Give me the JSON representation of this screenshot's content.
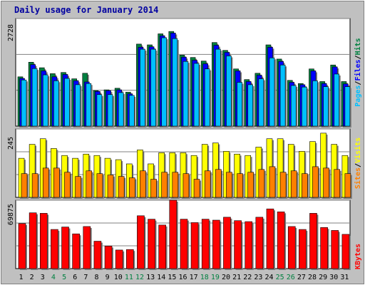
{
  "chart_data": {
    "type": "bar",
    "title": "Daily usage for January 2014",
    "x": [
      "1",
      "2",
      "3",
      "4",
      "5",
      "6",
      "7",
      "8",
      "9",
      "10",
      "11",
      "12",
      "13",
      "14",
      "15",
      "16",
      "17",
      "18",
      "19",
      "20",
      "21",
      "22",
      "23",
      "24",
      "25",
      "26",
      "27",
      "28",
      "29",
      "30",
      "31"
    ],
    "weekend_days": [
      4,
      5,
      11,
      12,
      18,
      19,
      25,
      26
    ],
    "panels": {
      "hits_files_pages": {
        "ymax_label": "2728",
        "ylim": [
          0,
          2728
        ],
        "legend": [
          "Pages",
          "/",
          "Files",
          "/",
          "Hits"
        ],
        "series": [
          {
            "name": "Hits",
            "color": "#008040",
            "values": [
              1250,
              1620,
              1480,
              1330,
              1360,
              1200,
              1340,
              900,
              920,
              960,
              860,
              2080,
              2060,
              2340,
              2400,
              1800,
              1740,
              1650,
              2120,
              1920,
              1450,
              1180,
              1340,
              2060,
              1700,
              1160,
              1080,
              1450,
              1130,
              1550,
              1130
            ]
          },
          {
            "name": "Files",
            "color": "#0000ff",
            "values": [
              1210,
              1560,
              1400,
              1250,
              1310,
              1150,
              1120,
              880,
              900,
              920,
              820,
              2000,
              2010,
              2290,
              2360,
              1750,
              1670,
              1580,
              2050,
              1870,
              1400,
              1130,
              1290,
              2000,
              1640,
              1110,
              1050,
              1400,
              1080,
              1500,
              1070
            ]
          },
          {
            "name": "Pages",
            "color": "#00c0ff",
            "values": [
              1170,
              1460,
              1300,
              1150,
              1210,
              1050,
              1080,
              800,
              800,
              850,
              780,
              1950,
              1950,
              2240,
              2220,
              1640,
              1590,
              1450,
              1950,
              1780,
              1110,
              1050,
              1200,
              1730,
              1550,
              1030,
              990,
              1150,
              1000,
              1320,
              1000
            ]
          }
        ]
      },
      "visits_sites": {
        "ymax_label": "245",
        "ylim": [
          0,
          245
        ],
        "legend": [
          "Sites",
          "/",
          "Visits"
        ],
        "series": [
          {
            "name": "Visits",
            "color": "#ffff00",
            "values": [
              140,
              190,
              210,
              175,
              150,
              140,
              155,
              150,
              140,
              135,
              120,
              170,
              120,
              160,
              160,
              160,
              150,
              190,
              195,
              165,
              155,
              150,
              180,
              210,
              210,
              190,
              165,
              200,
              230,
              190,
              150
            ]
          },
          {
            "name": "Sites",
            "color": "#ff8000",
            "values": [
              85,
              85,
              105,
              105,
              90,
              75,
              95,
              85,
              80,
              75,
              70,
              95,
              65,
              90,
              90,
              85,
              65,
              95,
              100,
              90,
              85,
              90,
              100,
              110,
              90,
              95,
              85,
              110,
              105,
              100,
              85
            ]
          }
        ]
      },
      "kbytes": {
        "ymax_label": "69875",
        "ylim": [
          0,
          69875
        ],
        "legend": [
          "KBytes"
        ],
        "series": [
          {
            "name": "KBytes",
            "color": "#ff0000",
            "values": [
              46000,
              57000,
              56500,
              40000,
              42500,
              35500,
              43000,
              28000,
              23000,
              19000,
              19500,
              54000,
              50500,
              44500,
              69875,
              50500,
              47000,
              50500,
              49500,
              52500,
              49000,
              48000,
              52500,
              61000,
              58000,
              43000,
              40000,
              56500,
              42000,
              39000,
              35000
            ]
          }
        ]
      }
    }
  },
  "colors": {
    "background": "#c0c0c0",
    "plot_bg": "#ffffff",
    "title": "#0000a0",
    "weekday_label": "#000000",
    "weekend_label": "#008040"
  }
}
